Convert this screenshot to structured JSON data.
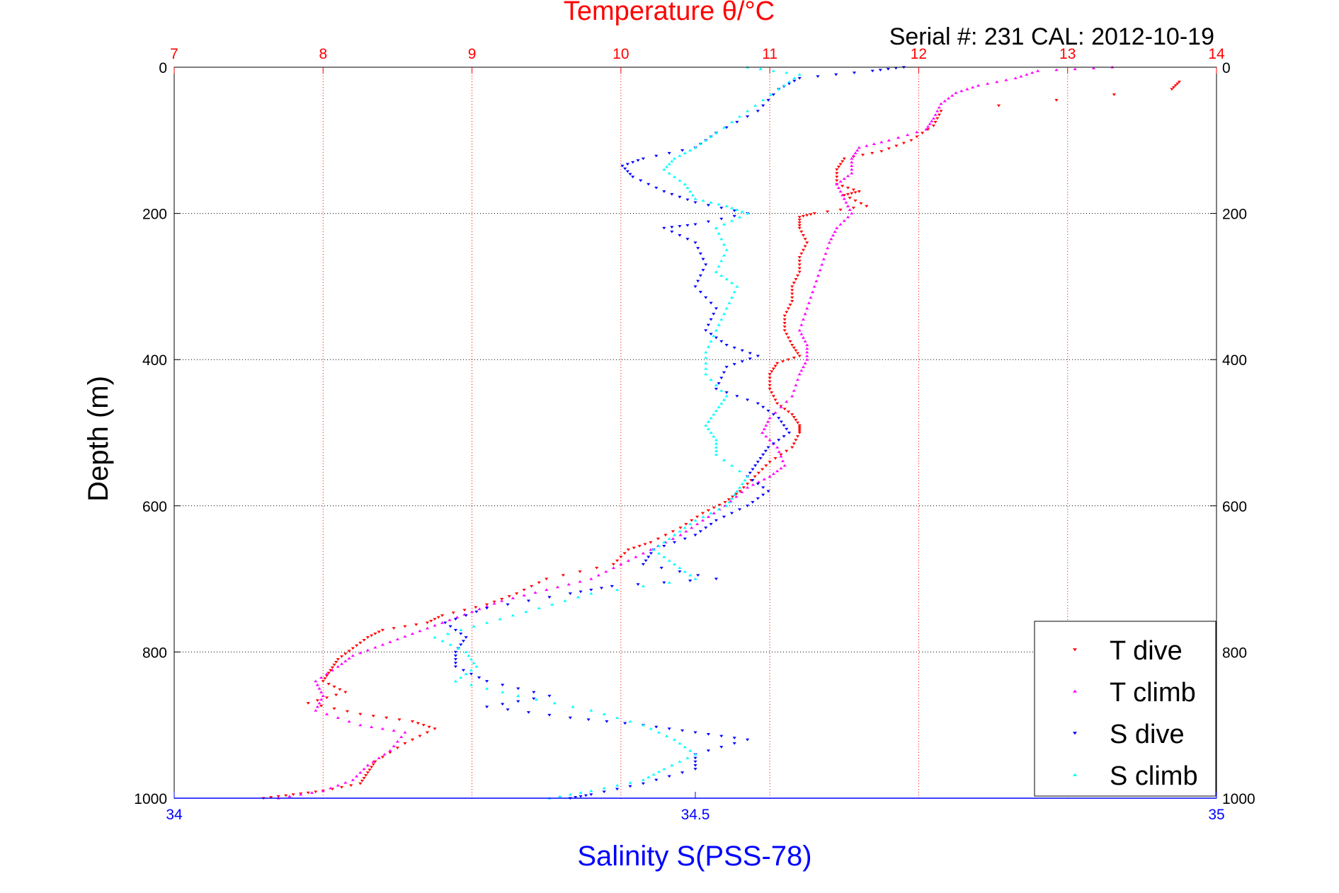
{
  "chart_data": {
    "type": "scatter",
    "title": "Temperature θ/°C",
    "subtitle": "Serial #: 231  CAL: 2012-10-19",
    "ylabel": "Depth (m)",
    "xlabel": "Salinity S(PSS-78)",
    "ylim": [
      1000,
      0
    ],
    "y_ticks": [
      "0",
      "200",
      "400",
      "600",
      "800",
      "1000"
    ],
    "temperature_axis": {
      "range": [
        7,
        14
      ],
      "ticks": [
        "7",
        "8",
        "9",
        "10",
        "11",
        "12",
        "13",
        "14"
      ],
      "color": "#ff0000"
    },
    "salinity_axis": {
      "range": [
        34,
        35
      ],
      "ticks": [
        "34",
        "34.5",
        "35"
      ],
      "color": "#0000ff"
    },
    "grid": true,
    "legend_position": "bottom-right",
    "series": [
      {
        "name": "T dive",
        "axis": "temperature",
        "color": "#ff0000",
        "marker": "down-triangle",
        "points": [
          [
            13.75,
            20
          ],
          [
            13.7,
            30
          ],
          [
            12.15,
            60
          ],
          [
            12.1,
            80
          ],
          [
            11.95,
            100
          ],
          [
            11.75,
            115
          ],
          [
            11.5,
            125
          ],
          [
            11.45,
            140
          ],
          [
            11.45,
            160
          ],
          [
            11.6,
            170
          ],
          [
            11.5,
            175
          ],
          [
            11.65,
            190
          ],
          [
            11.3,
            200
          ],
          [
            11.2,
            205
          ],
          [
            11.2,
            220
          ],
          [
            11.25,
            240
          ],
          [
            11.2,
            260
          ],
          [
            11.2,
            280
          ],
          [
            11.15,
            300
          ],
          [
            11.15,
            320
          ],
          [
            11.1,
            340
          ],
          [
            11.1,
            360
          ],
          [
            11.15,
            380
          ],
          [
            11.2,
            395
          ],
          [
            11.05,
            405
          ],
          [
            11.0,
            420
          ],
          [
            11.0,
            440
          ],
          [
            11.05,
            460
          ],
          [
            11.15,
            475
          ],
          [
            11.2,
            490
          ],
          [
            11.2,
            500
          ],
          [
            11.15,
            520
          ],
          [
            11.0,
            540
          ],
          [
            10.9,
            560
          ],
          [
            10.8,
            580
          ],
          [
            10.7,
            595
          ],
          [
            10.55,
            610
          ],
          [
            10.4,
            630
          ],
          [
            10.2,
            650
          ],
          [
            10.05,
            660
          ],
          [
            9.95,
            680
          ],
          [
            9.5,
            700
          ],
          [
            9.3,
            720
          ],
          [
            9.1,
            735
          ],
          [
            8.8,
            750
          ],
          [
            8.7,
            760
          ],
          [
            8.4,
            770
          ],
          [
            8.3,
            780
          ],
          [
            8.2,
            795
          ],
          [
            8.1,
            810
          ],
          [
            8.05,
            825
          ],
          [
            8.0,
            840
          ],
          [
            8.15,
            855
          ],
          [
            7.9,
            870
          ],
          [
            8.25,
            885
          ],
          [
            8.6,
            895
          ],
          [
            8.75,
            905
          ],
          [
            8.55,
            925
          ],
          [
            8.35,
            950
          ],
          [
            8.3,
            965
          ],
          [
            8.25,
            980
          ],
          [
            8.0,
            990
          ],
          [
            7.8,
            995
          ],
          [
            7.6,
            1000
          ]
        ]
      },
      {
        "name": "T climb",
        "axis": "temperature",
        "color": "#ff00ff",
        "marker": "up-triangle",
        "points": [
          [
            13.3,
            0
          ],
          [
            12.8,
            5
          ],
          [
            12.65,
            15
          ],
          [
            12.4,
            25
          ],
          [
            12.25,
            35
          ],
          [
            12.15,
            50
          ],
          [
            12.1,
            70
          ],
          [
            12.05,
            85
          ],
          [
            11.8,
            100
          ],
          [
            11.6,
            110
          ],
          [
            11.55,
            125
          ],
          [
            11.55,
            145
          ],
          [
            11.45,
            160
          ],
          [
            11.5,
            180
          ],
          [
            11.55,
            200
          ],
          [
            11.45,
            220
          ],
          [
            11.4,
            240
          ],
          [
            11.35,
            270
          ],
          [
            11.3,
            300
          ],
          [
            11.25,
            330
          ],
          [
            11.2,
            360
          ],
          [
            11.25,
            380
          ],
          [
            11.25,
            400
          ],
          [
            11.2,
            420
          ],
          [
            11.15,
            450
          ],
          [
            11.0,
            480
          ],
          [
            10.95,
            500
          ],
          [
            11.05,
            520
          ],
          [
            11.1,
            545
          ],
          [
            11.0,
            560
          ],
          [
            10.85,
            575
          ],
          [
            10.7,
            600
          ],
          [
            10.55,
            620
          ],
          [
            10.4,
            640
          ],
          [
            10.2,
            660
          ],
          [
            10.0,
            680
          ],
          [
            9.8,
            700
          ],
          [
            9.5,
            715
          ],
          [
            9.2,
            730
          ],
          [
            9.0,
            745
          ],
          [
            8.8,
            760
          ],
          [
            8.6,
            775
          ],
          [
            8.4,
            790
          ],
          [
            8.2,
            805
          ],
          [
            8.1,
            820
          ],
          [
            7.95,
            840
          ],
          [
            8.0,
            860
          ],
          [
            7.95,
            880
          ],
          [
            8.25,
            900
          ],
          [
            8.55,
            910
          ],
          [
            8.45,
            935
          ],
          [
            8.3,
            955
          ],
          [
            8.2,
            975
          ],
          [
            8.0,
            990
          ],
          [
            7.7,
            1000
          ]
        ]
      },
      {
        "name": "S dive",
        "axis": "salinity",
        "color": "#0000ff",
        "marker": "down-triangle",
        "points": [
          [
            34.7,
            0
          ],
          [
            34.67,
            5
          ],
          [
            34.6,
            15
          ],
          [
            34.58,
            30
          ],
          [
            34.56,
            60
          ],
          [
            34.52,
            90
          ],
          [
            34.5,
            110
          ],
          [
            34.45,
            125
          ],
          [
            34.43,
            135
          ],
          [
            34.44,
            150
          ],
          [
            34.47,
            170
          ],
          [
            34.5,
            185
          ],
          [
            34.55,
            200
          ],
          [
            34.5,
            215
          ],
          [
            34.47,
            220
          ],
          [
            34.5,
            240
          ],
          [
            34.51,
            270
          ],
          [
            34.5,
            300
          ],
          [
            34.52,
            330
          ],
          [
            34.51,
            360
          ],
          [
            34.53,
            380
          ],
          [
            34.56,
            395
          ],
          [
            34.53,
            410
          ],
          [
            34.52,
            440
          ],
          [
            34.56,
            460
          ],
          [
            34.58,
            480
          ],
          [
            34.59,
            500
          ],
          [
            34.57,
            520
          ],
          [
            34.56,
            540
          ],
          [
            34.55,
            560
          ],
          [
            34.57,
            580
          ],
          [
            34.55,
            600
          ],
          [
            34.52,
            620
          ],
          [
            34.5,
            640
          ],
          [
            34.46,
            660
          ],
          [
            34.45,
            680
          ],
          [
            34.52,
            700
          ],
          [
            34.42,
            710
          ],
          [
            34.38,
            720
          ],
          [
            34.3,
            740
          ],
          [
            34.26,
            760
          ],
          [
            34.28,
            780
          ],
          [
            34.27,
            800
          ],
          [
            34.27,
            820
          ],
          [
            34.3,
            840
          ],
          [
            34.36,
            860
          ],
          [
            34.3,
            875
          ],
          [
            34.38,
            890
          ],
          [
            34.45,
            900
          ],
          [
            34.5,
            910
          ],
          [
            34.55,
            920
          ],
          [
            34.5,
            940
          ],
          [
            34.5,
            960
          ],
          [
            34.45,
            980
          ],
          [
            34.4,
            995
          ],
          [
            34.38,
            1000
          ]
        ]
      },
      {
        "name": "S climb",
        "axis": "salinity",
        "color": "#00ffff",
        "marker": "up-triangle",
        "points": [
          [
            34.55,
            0
          ],
          [
            34.6,
            10
          ],
          [
            34.58,
            30
          ],
          [
            34.55,
            60
          ],
          [
            34.52,
            90
          ],
          [
            34.5,
            110
          ],
          [
            34.48,
            125
          ],
          [
            34.47,
            140
          ],
          [
            34.49,
            160
          ],
          [
            34.5,
            180
          ],
          [
            34.53,
            190
          ],
          [
            34.55,
            200
          ],
          [
            34.52,
            220
          ],
          [
            34.53,
            250
          ],
          [
            34.52,
            280
          ],
          [
            34.54,
            300
          ],
          [
            34.53,
            330
          ],
          [
            34.52,
            360
          ],
          [
            34.51,
            390
          ],
          [
            34.51,
            420
          ],
          [
            34.53,
            450
          ],
          [
            34.52,
            470
          ],
          [
            34.51,
            490
          ],
          [
            34.52,
            510
          ],
          [
            34.52,
            530
          ],
          [
            34.55,
            560
          ],
          [
            34.54,
            580
          ],
          [
            34.53,
            600
          ],
          [
            34.5,
            620
          ],
          [
            34.48,
            640
          ],
          [
            34.46,
            660
          ],
          [
            34.48,
            680
          ],
          [
            34.5,
            700
          ],
          [
            34.4,
            720
          ],
          [
            34.35,
            740
          ],
          [
            34.3,
            760
          ],
          [
            34.25,
            780
          ],
          [
            34.28,
            800
          ],
          [
            34.29,
            820
          ],
          [
            34.27,
            840
          ],
          [
            34.33,
            860
          ],
          [
            34.4,
            880
          ],
          [
            34.45,
            900
          ],
          [
            34.48,
            920
          ],
          [
            34.5,
            940
          ],
          [
            34.47,
            960
          ],
          [
            34.45,
            975
          ],
          [
            34.4,
            990
          ],
          [
            34.36,
            1000
          ]
        ]
      }
    ]
  }
}
